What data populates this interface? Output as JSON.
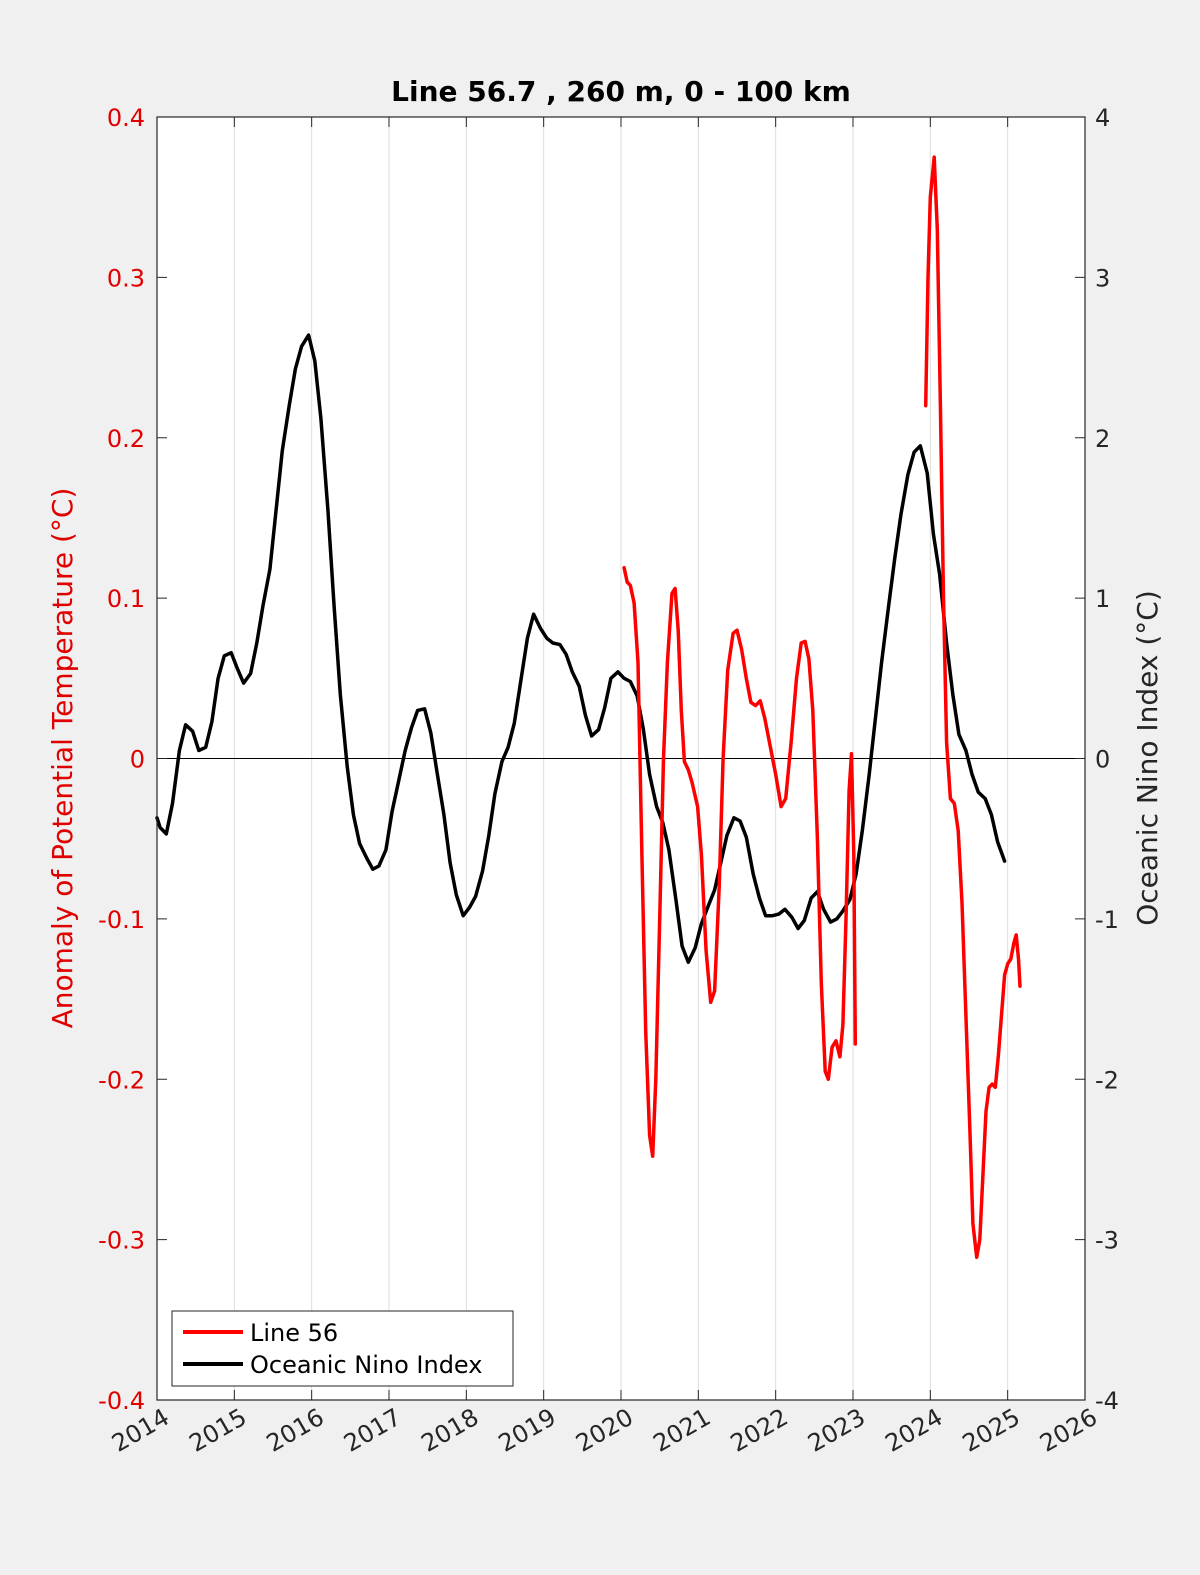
{
  "chart_data": {
    "type": "line",
    "title": "Line 56.7 , 260 m, 0 - 100 km",
    "xlabel": "",
    "xlim": [
      2014,
      2026
    ],
    "xticks": [
      "2014",
      "2015",
      "2016",
      "2017",
      "2018",
      "2019",
      "2020",
      "2021",
      "2022",
      "2023",
      "2024",
      "2025",
      "2026"
    ],
    "ylabel_left": "Anomaly of Potential Temperature (°C)",
    "ylim_left": [
      -0.4,
      0.4
    ],
    "yticks_left": [
      "-0.4",
      "-0.3",
      "-0.2",
      "-0.1",
      "0",
      "0.1",
      "0.2",
      "0.3",
      "0.4"
    ],
    "ylabel_right": "Oceanic Nino Index (°C)",
    "ylim_right": [
      -4,
      4
    ],
    "yticks_right": [
      "-4",
      "-3",
      "-2",
      "-1",
      "0",
      "1",
      "2",
      "3",
      "4"
    ],
    "grid": "vertical",
    "zero_line": true,
    "legend_position": "bottom-left",
    "colors": {
      "line56": "#ff0000",
      "oni": "#000000",
      "left_axis": "#e00000"
    },
    "series": [
      {
        "name": "Line 56",
        "axis": "left",
        "segments": [
          [
            [
              2020.04,
              0.119
            ],
            [
              2020.08,
              0.11
            ],
            [
              2020.12,
              0.108
            ],
            [
              2020.17,
              0.097
            ],
            [
              2020.22,
              0.06
            ],
            [
              2020.27,
              -0.06
            ],
            [
              2020.32,
              -0.17
            ],
            [
              2020.37,
              -0.235
            ],
            [
              2020.41,
              -0.248
            ],
            [
              2020.45,
              -0.2
            ],
            [
              2020.5,
              -0.1
            ],
            [
              2020.55,
              0.0
            ],
            [
              2020.6,
              0.06
            ],
            [
              2020.66,
              0.103
            ],
            [
              2020.7,
              0.106
            ],
            [
              2020.74,
              0.08
            ],
            [
              2020.78,
              0.03
            ],
            [
              2020.82,
              -0.002
            ],
            [
              2020.87,
              -0.007
            ],
            [
              2020.92,
              -0.015
            ],
            [
              2020.99,
              -0.03
            ],
            [
              2021.04,
              -0.06
            ],
            [
              2021.1,
              -0.12
            ],
            [
              2021.16,
              -0.152
            ],
            [
              2021.21,
              -0.145
            ],
            [
              2021.27,
              -0.08
            ],
            [
              2021.32,
              0.0
            ],
            [
              2021.38,
              0.055
            ],
            [
              2021.45,
              0.078
            ],
            [
              2021.5,
              0.08
            ],
            [
              2021.56,
              0.068
            ],
            [
              2021.62,
              0.05
            ],
            [
              2021.68,
              0.035
            ],
            [
              2021.74,
              0.033
            ],
            [
              2021.8,
              0.036
            ],
            [
              2021.86,
              0.025
            ],
            [
              2021.92,
              0.01
            ],
            [
              2022.0,
              -0.01
            ],
            [
              2022.07,
              -0.03
            ],
            [
              2022.13,
              -0.025
            ],
            [
              2022.2,
              0.01
            ],
            [
              2022.27,
              0.05
            ],
            [
              2022.33,
              0.072
            ],
            [
              2022.38,
              0.073
            ],
            [
              2022.43,
              0.062
            ],
            [
              2022.48,
              0.03
            ],
            [
              2022.54,
              -0.05
            ],
            [
              2022.59,
              -0.14
            ],
            [
              2022.64,
              -0.195
            ],
            [
              2022.68,
              -0.2
            ],
            [
              2022.73,
              -0.18
            ],
            [
              2022.78,
              -0.176
            ],
            [
              2022.83,
              -0.186
            ],
            [
              2022.87,
              -0.166
            ],
            [
              2022.91,
              -0.1
            ],
            [
              2022.95,
              -0.02
            ],
            [
              2022.98,
              0.003
            ],
            [
              2023.01,
              -0.06
            ],
            [
              2023.03,
              -0.178
            ]
          ],
          [
            [
              2023.94,
              0.22
            ],
            [
              2023.97,
              0.3
            ],
            [
              2024.0,
              0.35
            ],
            [
              2024.05,
              0.375
            ],
            [
              2024.09,
              0.33
            ],
            [
              2024.13,
              0.22
            ],
            [
              2024.17,
              0.1
            ],
            [
              2024.21,
              0.01
            ],
            [
              2024.26,
              -0.025
            ],
            [
              2024.31,
              -0.028
            ],
            [
              2024.36,
              -0.045
            ],
            [
              2024.41,
              -0.09
            ],
            [
              2024.46,
              -0.16
            ],
            [
              2024.51,
              -0.23
            ],
            [
              2024.55,
              -0.29
            ],
            [
              2024.6,
              -0.311
            ],
            [
              2024.64,
              -0.3
            ],
            [
              2024.68,
              -0.26
            ],
            [
              2024.72,
              -0.22
            ],
            [
              2024.76,
              -0.205
            ],
            [
              2024.8,
              -0.203
            ],
            [
              2024.84,
              -0.205
            ],
            [
              2024.88,
              -0.185
            ],
            [
              2024.92,
              -0.16
            ],
            [
              2024.96,
              -0.135
            ],
            [
              2025.0,
              -0.128
            ],
            [
              2025.04,
              -0.125
            ],
            [
              2025.08,
              -0.115
            ],
            [
              2025.11,
              -0.11
            ],
            [
              2025.14,
              -0.125
            ],
            [
              2025.16,
              -0.142
            ]
          ]
        ]
      },
      {
        "name": "Oceanic Nino Index",
        "axis": "right",
        "segments": [
          [
            [
              2014.0,
              -0.37
            ],
            [
              2014.04,
              -0.43
            ],
            [
              2014.12,
              -0.47
            ],
            [
              2014.2,
              -0.28
            ],
            [
              2014.29,
              0.05
            ],
            [
              2014.37,
              0.21
            ],
            [
              2014.46,
              0.17
            ],
            [
              2014.54,
              0.05
            ],
            [
              2014.63,
              0.07
            ],
            [
              2014.71,
              0.23
            ],
            [
              2014.79,
              0.5
            ],
            [
              2014.87,
              0.64
            ],
            [
              2014.96,
              0.66
            ],
            [
              2015.04,
              0.56
            ],
            [
              2015.12,
              0.47
            ],
            [
              2015.21,
              0.53
            ],
            [
              2015.29,
              0.72
            ],
            [
              2015.37,
              0.95
            ],
            [
              2015.46,
              1.18
            ],
            [
              2015.54,
              1.55
            ],
            [
              2015.62,
              1.92
            ],
            [
              2015.71,
              2.2
            ],
            [
              2015.79,
              2.43
            ],
            [
              2015.87,
              2.57
            ],
            [
              2015.96,
              2.64
            ],
            [
              2016.04,
              2.48
            ],
            [
              2016.12,
              2.12
            ],
            [
              2016.21,
              1.55
            ],
            [
              2016.29,
              0.95
            ],
            [
              2016.37,
              0.4
            ],
            [
              2016.46,
              -0.05
            ],
            [
              2016.54,
              -0.35
            ],
            [
              2016.62,
              -0.53
            ],
            [
              2016.71,
              -0.62
            ],
            [
              2016.79,
              -0.69
            ],
            [
              2016.87,
              -0.67
            ],
            [
              2016.96,
              -0.57
            ],
            [
              2017.04,
              -0.33
            ],
            [
              2017.12,
              -0.15
            ],
            [
              2017.21,
              0.05
            ],
            [
              2017.29,
              0.19
            ],
            [
              2017.37,
              0.3
            ],
            [
              2017.46,
              0.31
            ],
            [
              2017.54,
              0.16
            ],
            [
              2017.62,
              -0.08
            ],
            [
              2017.71,
              -0.35
            ],
            [
              2017.79,
              -0.65
            ],
            [
              2017.87,
              -0.85
            ],
            [
              2017.96,
              -0.98
            ],
            [
              2018.04,
              -0.93
            ],
            [
              2018.12,
              -0.86
            ],
            [
              2018.21,
              -0.7
            ],
            [
              2018.29,
              -0.48
            ],
            [
              2018.37,
              -0.22
            ],
            [
              2018.46,
              -0.02
            ],
            [
              2018.54,
              0.07
            ],
            [
              2018.62,
              0.22
            ],
            [
              2018.71,
              0.5
            ],
            [
              2018.79,
              0.75
            ],
            [
              2018.87,
              0.9
            ],
            [
              2018.96,
              0.81
            ],
            [
              2019.04,
              0.75
            ],
            [
              2019.12,
              0.72
            ],
            [
              2019.21,
              0.71
            ],
            [
              2019.29,
              0.65
            ],
            [
              2019.37,
              0.54
            ],
            [
              2019.46,
              0.45
            ],
            [
              2019.54,
              0.27
            ],
            [
              2019.62,
              0.14
            ],
            [
              2019.71,
              0.18
            ],
            [
              2019.79,
              0.32
            ],
            [
              2019.87,
              0.5
            ],
            [
              2019.96,
              0.54
            ],
            [
              2020.04,
              0.5
            ],
            [
              2020.12,
              0.48
            ],
            [
              2020.21,
              0.39
            ],
            [
              2020.29,
              0.18
            ],
            [
              2020.37,
              -0.1
            ],
            [
              2020.46,
              -0.3
            ],
            [
              2020.54,
              -0.4
            ],
            [
              2020.62,
              -0.57
            ],
            [
              2020.71,
              -0.88
            ],
            [
              2020.79,
              -1.17
            ],
            [
              2020.87,
              -1.27
            ],
            [
              2020.96,
              -1.18
            ],
            [
              2021.04,
              -1.03
            ],
            [
              2021.12,
              -0.93
            ],
            [
              2021.21,
              -0.82
            ],
            [
              2021.29,
              -0.65
            ],
            [
              2021.37,
              -0.48
            ],
            [
              2021.46,
              -0.37
            ],
            [
              2021.54,
              -0.39
            ],
            [
              2021.62,
              -0.49
            ],
            [
              2021.71,
              -0.72
            ],
            [
              2021.79,
              -0.87
            ],
            [
              2021.87,
              -0.98
            ],
            [
              2021.96,
              -0.98
            ],
            [
              2022.04,
              -0.97
            ],
            [
              2022.12,
              -0.94
            ],
            [
              2022.21,
              -0.99
            ],
            [
              2022.29,
              -1.06
            ],
            [
              2022.37,
              -1.01
            ],
            [
              2022.46,
              -0.87
            ],
            [
              2022.54,
              -0.83
            ],
            [
              2022.62,
              -0.94
            ],
            [
              2022.71,
              -1.02
            ],
            [
              2022.79,
              -1.0
            ],
            [
              2022.87,
              -0.95
            ],
            [
              2022.96,
              -0.88
            ],
            [
              2023.04,
              -0.72
            ],
            [
              2023.12,
              -0.45
            ],
            [
              2023.21,
              -0.1
            ],
            [
              2023.29,
              0.25
            ],
            [
              2023.37,
              0.6
            ],
            [
              2023.46,
              0.95
            ],
            [
              2023.54,
              1.25
            ],
            [
              2023.62,
              1.52
            ],
            [
              2023.71,
              1.77
            ],
            [
              2023.79,
              1.91
            ],
            [
              2023.87,
              1.95
            ],
            [
              2023.96,
              1.78
            ],
            [
              2024.04,
              1.4
            ],
            [
              2024.12,
              1.15
            ],
            [
              2024.21,
              0.72
            ],
            [
              2024.29,
              0.4
            ],
            [
              2024.37,
              0.15
            ],
            [
              2024.46,
              0.05
            ],
            [
              2024.54,
              -0.1
            ],
            [
              2024.62,
              -0.21
            ],
            [
              2024.71,
              -0.25
            ],
            [
              2024.79,
              -0.35
            ],
            [
              2024.87,
              -0.52
            ],
            [
              2024.96,
              -0.64
            ]
          ]
        ]
      }
    ]
  }
}
